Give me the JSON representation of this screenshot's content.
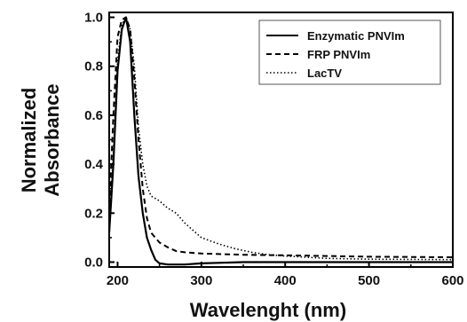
{
  "chart_data": {
    "type": "line",
    "title": "",
    "xlabel": "Wavelenght (nm)",
    "ylabel_line1": "Normalized",
    "ylabel_line2": "Absorbance",
    "xlim": [
      190,
      600
    ],
    "ylim": [
      -0.02,
      1.02
    ],
    "xticks": [
      200,
      300,
      400,
      500,
      600
    ],
    "yticks": [
      0.0,
      0.2,
      0.4,
      0.6,
      0.8,
      1.0
    ],
    "legend_position": "top-right",
    "series": [
      {
        "name": "Enzymatic PNVIm",
        "style": "solid",
        "color": "#000000",
        "points": [
          [
            190,
            0.12
          ],
          [
            195,
            0.4
          ],
          [
            200,
            0.78
          ],
          [
            205,
            0.95
          ],
          [
            210,
            1.0
          ],
          [
            215,
            0.9
          ],
          [
            220,
            0.6
          ],
          [
            225,
            0.35
          ],
          [
            230,
            0.2
          ],
          [
            235,
            0.1
          ],
          [
            240,
            0.05
          ],
          [
            245,
            0.01
          ],
          [
            250,
            -0.005
          ],
          [
            260,
            -0.01
          ],
          [
            280,
            -0.01
          ],
          [
            300,
            -0.005
          ],
          [
            350,
            0.0
          ],
          [
            400,
            0.0
          ],
          [
            450,
            0.0
          ],
          [
            500,
            0.0
          ],
          [
            600,
            0.0
          ]
        ]
      },
      {
        "name": "FRP PNVIm",
        "style": "dashed",
        "color": "#000000",
        "points": [
          [
            190,
            0.2
          ],
          [
            195,
            0.6
          ],
          [
            200,
            0.92
          ],
          [
            205,
            0.99
          ],
          [
            210,
            1.0
          ],
          [
            215,
            0.95
          ],
          [
            220,
            0.75
          ],
          [
            225,
            0.5
          ],
          [
            230,
            0.3
          ],
          [
            235,
            0.18
          ],
          [
            240,
            0.12
          ],
          [
            250,
            0.08
          ],
          [
            260,
            0.06
          ],
          [
            270,
            0.045
          ],
          [
            280,
            0.04
          ],
          [
            300,
            0.035
          ],
          [
            350,
            0.03
          ],
          [
            400,
            0.028
          ],
          [
            450,
            0.025
          ],
          [
            500,
            0.022
          ],
          [
            600,
            0.02
          ]
        ]
      },
      {
        "name": "LacTV",
        "style": "dotted",
        "color": "#000000",
        "points": [
          [
            190,
            0.14
          ],
          [
            195,
            0.45
          ],
          [
            200,
            0.82
          ],
          [
            205,
            0.97
          ],
          [
            210,
            1.0
          ],
          [
            215,
            0.95
          ],
          [
            220,
            0.8
          ],
          [
            225,
            0.55
          ],
          [
            230,
            0.4
          ],
          [
            235,
            0.31
          ],
          [
            240,
            0.27
          ],
          [
            250,
            0.25
          ],
          [
            260,
            0.22
          ],
          [
            270,
            0.2
          ],
          [
            280,
            0.16
          ],
          [
            290,
            0.13
          ],
          [
            300,
            0.1
          ],
          [
            320,
            0.075
          ],
          [
            340,
            0.055
          ],
          [
            360,
            0.04
          ],
          [
            380,
            0.03
          ],
          [
            400,
            0.025
          ],
          [
            450,
            0.015
          ],
          [
            500,
            0.012
          ],
          [
            600,
            0.01
          ]
        ]
      }
    ]
  }
}
